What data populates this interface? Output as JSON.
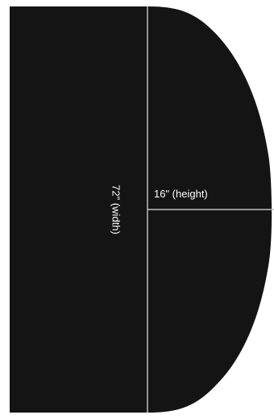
{
  "diagram": {
    "width_label": "72\" (width)",
    "height_label": "16\" (height)",
    "shape_color": "#141414",
    "line_color": "#bfbfbf",
    "background_color": "#ffffff"
  }
}
